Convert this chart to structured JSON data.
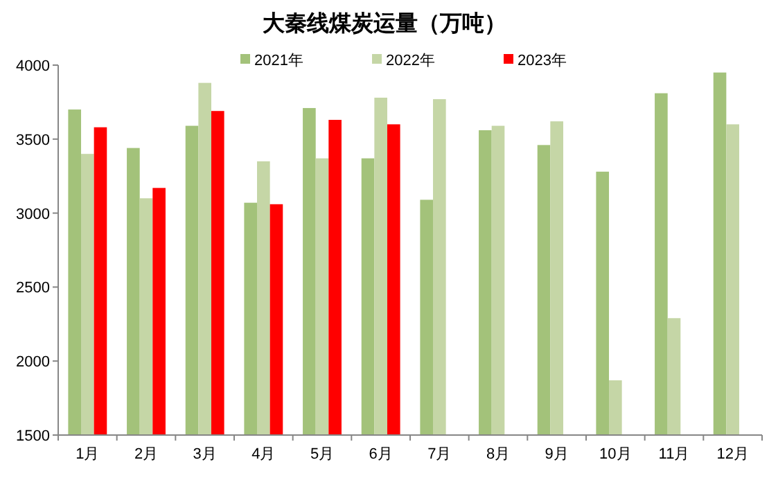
{
  "chart_data": {
    "type": "bar",
    "title": "大秦线煤炭运量（万吨）",
    "categories": [
      "1月",
      "2月",
      "3月",
      "4月",
      "5月",
      "6月",
      "7月",
      "8月",
      "9月",
      "10月",
      "11月",
      "12月"
    ],
    "series": [
      {
        "name": "2021年",
        "color": "#a3c27a",
        "values": [
          3700,
          3440,
          3590,
          3070,
          3710,
          3370,
          3090,
          3560,
          3460,
          3280,
          3810,
          3950
        ]
      },
      {
        "name": "2022年",
        "color": "#c5d6a6",
        "values": [
          3400,
          3100,
          3880,
          3350,
          3370,
          3780,
          3770,
          3590,
          3620,
          1870,
          2290,
          3600
        ]
      },
      {
        "name": "2023年",
        "color": "#ff0000",
        "values": [
          3580,
          3170,
          3690,
          3060,
          3630,
          3600,
          null,
          null,
          null,
          null,
          null,
          null
        ]
      }
    ],
    "ylim": [
      1500,
      4000
    ],
    "yticks": [
      1500,
      2000,
      2500,
      3000,
      3500,
      4000
    ],
    "grid": false,
    "legend": "top"
  }
}
